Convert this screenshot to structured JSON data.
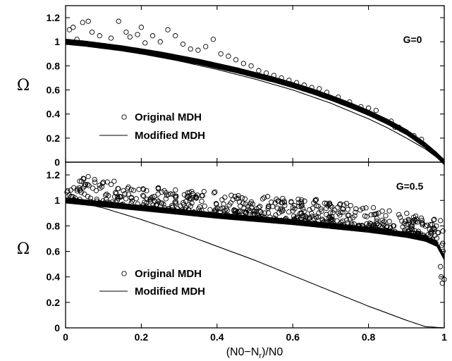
{
  "chart_data": [
    {
      "type": "scatter",
      "panel": "top",
      "annotation": "G=0",
      "ylabel": "Ω",
      "xlabel": "",
      "xlim": [
        0,
        1
      ],
      "ylim": [
        0,
        1.3
      ],
      "xticks": [
        "0",
        "0.2",
        "0.4",
        "0.6",
        "0.8",
        "1"
      ],
      "yticks": [
        "0",
        "0.2",
        "0.4",
        "0.6",
        "0.8",
        "1",
        "1.2"
      ],
      "legend_position": "bottom-left",
      "series": [
        {
          "name": "Original MDH",
          "marker": "open-circle",
          "band": {
            "x": [
              0,
              0.05,
              0.1,
              0.15,
              0.2,
              0.25,
              0.3,
              0.35,
              0.4,
              0.45,
              0.5,
              0.55,
              0.6,
              0.65,
              0.7,
              0.75,
              0.8,
              0.85,
              0.9,
              0.95,
              0.98,
              1.0
            ],
            "y": [
              1.0,
              0.985,
              0.965,
              0.945,
              0.92,
              0.895,
              0.865,
              0.835,
              0.8,
              0.765,
              0.725,
              0.685,
              0.64,
              0.59,
              0.535,
              0.475,
              0.41,
              0.335,
              0.25,
              0.14,
              0.06,
              0.0
            ]
          },
          "outliers": [
            [
              0.01,
              1.1
            ],
            [
              0.02,
              1.12
            ],
            [
              0.03,
              1.02
            ],
            [
              0.045,
              1.16
            ],
            [
              0.06,
              1.17
            ],
            [
              0.07,
              1.08
            ],
            [
              0.09,
              1.05
            ],
            [
              0.12,
              1.03
            ],
            [
              0.14,
              1.17
            ],
            [
              0.16,
              1.08
            ],
            [
              0.17,
              1.04
            ],
            [
              0.19,
              1.06
            ],
            [
              0.2,
              1.12
            ],
            [
              0.21,
              0.99
            ],
            [
              0.23,
              1.05
            ],
            [
              0.25,
              1.0
            ],
            [
              0.27,
              1.1
            ],
            [
              0.29,
              1.05
            ],
            [
              0.31,
              0.98
            ],
            [
              0.33,
              0.94
            ],
            [
              0.35,
              0.93
            ],
            [
              0.37,
              0.96
            ],
            [
              0.39,
              1.02
            ],
            [
              0.41,
              0.9
            ],
            [
              0.43,
              0.88
            ],
            [
              0.45,
              0.85
            ],
            [
              0.47,
              0.82
            ],
            [
              0.49,
              0.8
            ],
            [
              0.51,
              0.76
            ],
            [
              0.53,
              0.74
            ],
            [
              0.55,
              0.72
            ],
            [
              0.57,
              0.7
            ],
            [
              0.59,
              0.68
            ],
            [
              0.61,
              0.66
            ],
            [
              0.63,
              0.64
            ],
            [
              0.65,
              0.62
            ],
            [
              0.67,
              0.61
            ],
            [
              0.69,
              0.58
            ],
            [
              0.72,
              0.54
            ],
            [
              0.75,
              0.5
            ],
            [
              0.78,
              0.46
            ],
            [
              0.8,
              0.45
            ],
            [
              0.82,
              0.43
            ],
            [
              0.86,
              0.34
            ],
            [
              0.87,
              0.29
            ],
            [
              0.88,
              0.29
            ],
            [
              0.9,
              0.25
            ],
            [
              0.92,
              0.22
            ],
            [
              0.94,
              0.19
            ],
            [
              0.96,
              0.11
            ]
          ]
        },
        {
          "name": "Modified MDH",
          "marker": "line",
          "x": [
            0,
            0.1,
            0.2,
            0.3,
            0.4,
            0.5,
            0.6,
            0.7,
            0.8,
            0.85,
            0.9,
            0.95,
            0.98,
            1.0
          ],
          "y": [
            1.0,
            0.955,
            0.9,
            0.84,
            0.77,
            0.69,
            0.6,
            0.49,
            0.36,
            0.285,
            0.2,
            0.11,
            0.04,
            0.0
          ]
        }
      ]
    },
    {
      "type": "scatter",
      "panel": "bottom",
      "annotation": "G=0.5",
      "ylabel": "Ω",
      "xlabel": "(N0−N",
      "xlabel_sub": "r",
      "xlabel_tail": ")/N0",
      "xlim": [
        0,
        1
      ],
      "ylim": [
        0,
        1.3
      ],
      "xticks": [
        "0",
        "0.2",
        "0.4",
        "0.6",
        "0.8",
        "1"
      ],
      "yticks": [
        "0",
        "0.2",
        "0.4",
        "0.6",
        "0.8",
        "1",
        "1.2"
      ],
      "legend_position": "bottom-left",
      "series": [
        {
          "name": "Original MDH",
          "marker": "open-circle",
          "band": {
            "x": [
              0,
              0.1,
              0.2,
              0.3,
              0.4,
              0.5,
              0.6,
              0.7,
              0.8,
              0.9,
              0.95,
              0.98,
              1.0
            ],
            "y": [
              1.0,
              0.97,
              0.94,
              0.91,
              0.88,
              0.855,
              0.83,
              0.8,
              0.77,
              0.73,
              0.7,
              0.66,
              0.55
            ]
          },
          "scatter_cloud": {
            "count": 650,
            "x_range": [
              0,
              1
            ],
            "upper_y": [
              1.22,
              1.17,
              1.12,
              1.09,
              1.07,
              1.04,
              1.02,
              1.0,
              0.95,
              0.9,
              0.85
            ]
          },
          "tail_points": [
            [
              0.99,
              0.48
            ],
            [
              0.992,
              0.4
            ],
            [
              0.995,
              0.35
            ],
            [
              0.997,
              0.6
            ],
            [
              1.0,
              0.38
            ]
          ]
        },
        {
          "name": "Modified MDH",
          "marker": "line",
          "x": [
            0,
            0.05,
            0.1,
            0.2,
            0.3,
            0.4,
            0.5,
            0.6,
            0.7,
            0.8,
            0.9,
            0.95,
            1.0
          ],
          "y": [
            1.0,
            0.975,
            0.94,
            0.85,
            0.75,
            0.64,
            0.53,
            0.41,
            0.29,
            0.17,
            0.06,
            0.01,
            0.0
          ]
        }
      ]
    }
  ]
}
